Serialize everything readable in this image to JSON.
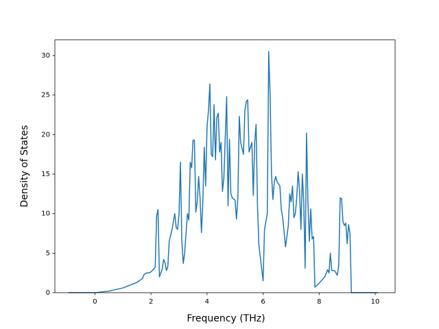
{
  "chart_data": {
    "type": "line",
    "xlabel": "Frequency (THz)",
    "ylabel": "Density of States",
    "color": "#1f77b4",
    "xlim": [
      -1.43,
      10.71
    ],
    "ylim": [
      0,
      32
    ],
    "xticks": [
      0,
      2,
      4,
      6,
      8,
      10
    ],
    "yticks": [
      0,
      5,
      10,
      15,
      20,
      25,
      30
    ],
    "x": [
      -0.95,
      0,
      0.5,
      1.0,
      1.5,
      1.7,
      1.75,
      1.85,
      1.95,
      2.05,
      2.15,
      2.2,
      2.25,
      2.3,
      2.4,
      2.45,
      2.5,
      2.55,
      2.6,
      2.65,
      2.75,
      2.85,
      2.9,
      2.95,
      3.0,
      3.05,
      3.1,
      3.15,
      3.2,
      3.3,
      3.35,
      3.4,
      3.45,
      3.5,
      3.55,
      3.6,
      3.65,
      3.7,
      3.75,
      3.8,
      3.85,
      3.9,
      3.95,
      4.0,
      4.05,
      4.1,
      4.15,
      4.2,
      4.25,
      4.3,
      4.35,
      4.4,
      4.45,
      4.5,
      4.55,
      4.6,
      4.7,
      4.75,
      4.8,
      4.85,
      4.9,
      5.0,
      5.05,
      5.1,
      5.15,
      5.2,
      5.3,
      5.35,
      5.4,
      5.45,
      5.5,
      5.6,
      5.65,
      5.7,
      5.75,
      5.8,
      5.85,
      5.95,
      6.0,
      6.05,
      6.15,
      6.2,
      6.25,
      6.3,
      6.35,
      6.4,
      6.45,
      6.5,
      6.6,
      6.65,
      6.7,
      6.8,
      6.9,
      6.95,
      7.0,
      7.05,
      7.1,
      7.15,
      7.2,
      7.25,
      7.3,
      7.35,
      7.4,
      7.45,
      7.5,
      7.55,
      7.6,
      7.65,
      7.7,
      7.75,
      7.8,
      7.85,
      8.0,
      8.2,
      8.3,
      8.35,
      8.4,
      8.45,
      8.55,
      8.65,
      8.7,
      8.75,
      8.8,
      8.85,
      8.9,
      8.95,
      9.0,
      9.05,
      9.1,
      9.15,
      10.1
    ],
    "values": [
      0,
      0,
      0.2,
      0.6,
      1.3,
      1.8,
      2.3,
      2.5,
      2.5,
      2.8,
      3.2,
      9.7,
      10.5,
      2.0,
      3.0,
      4.2,
      3.8,
      2.8,
      3.3,
      6.5,
      8.0,
      10.0,
      8.2,
      8.0,
      10.0,
      16.5,
      6.5,
      3.7,
      5.0,
      10.0,
      9.2,
      16.5,
      15.8,
      19.3,
      19.3,
      10.2,
      11.5,
      14.7,
      12.0,
      7.6,
      11.5,
      18.4,
      13.5,
      21.0,
      23.0,
      26.4,
      17.5,
      17.2,
      23.8,
      16.8,
      22.2,
      22.7,
      17.8,
      19.0,
      12.8,
      14.5,
      24.8,
      11.0,
      19.4,
      12.5,
      12.0,
      11.7,
      9.3,
      12.0,
      22.3,
      19.0,
      17.5,
      23.0,
      24.2,
      24.4,
      17.8,
      19.0,
      12.3,
      19.0,
      21.3,
      11.0,
      6.0,
      3.0,
      1.5,
      8.0,
      10.0,
      30.5,
      25.0,
      15.0,
      11.8,
      14.0,
      14.7,
      14.0,
      13.5,
      10.5,
      9.5,
      5.8,
      8.5,
      12.5,
      11.5,
      13.5,
      9.5,
      10.0,
      12.0,
      15.3,
      13.0,
      8.0,
      15.0,
      11.5,
      3.1,
      20.2,
      11.5,
      6.5,
      10.6,
      6.8,
      7.1,
      0.7,
      1.2,
      2.0,
      2.9,
      2.5,
      5.0,
      2.8,
      2.8,
      2.2,
      3.5,
      12.0,
      11.9,
      9.0,
      8.5,
      8.8,
      6.2,
      8.6,
      7.5,
      0,
      0
    ]
  }
}
